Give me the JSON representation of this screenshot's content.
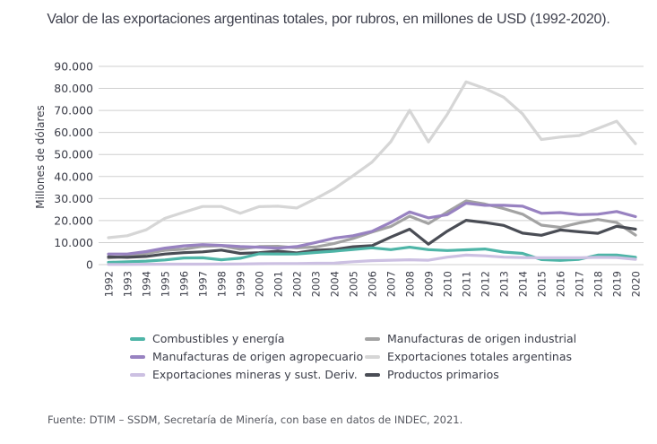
{
  "chart_data": {
    "type": "line",
    "title": "Valor de las exportaciones argentinas totales, por rubros, en millones de USD (1992-2020).",
    "xlabel": "",
    "ylabel": "Millones de dólares",
    "ylim": [
      0,
      90000
    ],
    "yticks": [
      0,
      10000,
      20000,
      30000,
      40000,
      50000,
      60000,
      70000,
      80000,
      90000
    ],
    "ytick_labels": [
      "0",
      "10.000",
      "20.000",
      "30.000",
      "40.000",
      "50.000",
      "60.000",
      "70.000",
      "80.000",
      "90.000"
    ],
    "grid": true,
    "legend_position": "bottom",
    "x": [
      "1992",
      "1993",
      "1994",
      "1995",
      "1996",
      "1997",
      "1998",
      "1999",
      "2000",
      "2001",
      "2002",
      "2003",
      "2004",
      "2005",
      "2006",
      "2007",
      "2008",
      "2009",
      "2010",
      "2011",
      "2012",
      "2013",
      "2014",
      "2015",
      "2016",
      "2017",
      "2018",
      "2019",
      "2020"
    ],
    "series": [
      {
        "name": "Exportaciones totales argentinas",
        "color": "#d6d6d6",
        "values": [
          12200,
          13100,
          15800,
          21000,
          23800,
          26400,
          26400,
          23300,
          26300,
          26500,
          25700,
          29900,
          34500,
          40400,
          46500,
          55800,
          70000,
          55700,
          68200,
          83000,
          80000,
          76000,
          68400,
          56800,
          57900,
          58600,
          61800,
          65100,
          54900
        ]
      },
      {
        "name": "Manufacturas de origen industrial",
        "color": "#a3a3a3",
        "values": [
          3000,
          3700,
          5000,
          6500,
          7000,
          8300,
          8600,
          7000,
          8200,
          8300,
          7600,
          8000,
          9600,
          11900,
          14800,
          17300,
          22000,
          18600,
          23900,
          28900,
          27500,
          25400,
          22900,
          17900,
          16900,
          18900,
          20500,
          19100,
          13400
        ]
      },
      {
        "name": "Manufacturas de origen agropecuario",
        "color": "#9882c1",
        "values": [
          4800,
          4800,
          5900,
          7500,
          8500,
          9100,
          8700,
          8200,
          7900,
          7500,
          8200,
          10000,
          12000,
          13100,
          15100,
          19200,
          23900,
          21200,
          22700,
          27900,
          26900,
          26900,
          26500,
          23300,
          23600,
          22700,
          22900,
          24100,
          21800
        ]
      },
      {
        "name": "Productos primarios",
        "color": "#4a4d55",
        "values": [
          3500,
          3300,
          3700,
          4800,
          5400,
          5800,
          6600,
          5100,
          5400,
          6100,
          5300,
          6500,
          6900,
          8100,
          8600,
          12500,
          16100,
          9300,
          15200,
          20100,
          19100,
          17800,
          14300,
          13300,
          15700,
          14900,
          14200,
          17400,
          16100
        ]
      },
      {
        "name": "Combustibles y energía",
        "color": "#4eb5a7",
        "values": [
          1000,
          1300,
          1600,
          2100,
          3000,
          3100,
          2200,
          2900,
          4900,
          4800,
          4800,
          5500,
          6100,
          6900,
          7600,
          6800,
          7900,
          6800,
          6400,
          6700,
          7100,
          5700,
          5100,
          2300,
          1900,
          2400,
          4300,
          4300,
          3300
        ]
      },
      {
        "name": "Exportaciones mineras y sust. Deriv.",
        "color": "#ccc0e2",
        "values": [
          100,
          100,
          150,
          200,
          200,
          200,
          250,
          300,
          400,
          500,
          500,
          600,
          700,
          1300,
          1800,
          2000,
          2200,
          2000,
          3400,
          4300,
          4000,
          3400,
          3200,
          3100,
          3100,
          3100,
          3300,
          3200,
          2400
        ]
      }
    ],
    "legend_order": [
      "Combustibles y energía",
      "Manufacturas de origen industrial",
      "Manufacturas de origen agropecuario",
      "Exportaciones totales argentinas",
      "Exportaciones mineras y sust. Deriv.",
      "Productos primarios"
    ],
    "source": "Fuente: DTIM – SSDM, Secretaría de Minería, con base en datos de INDEC, 2021."
  }
}
